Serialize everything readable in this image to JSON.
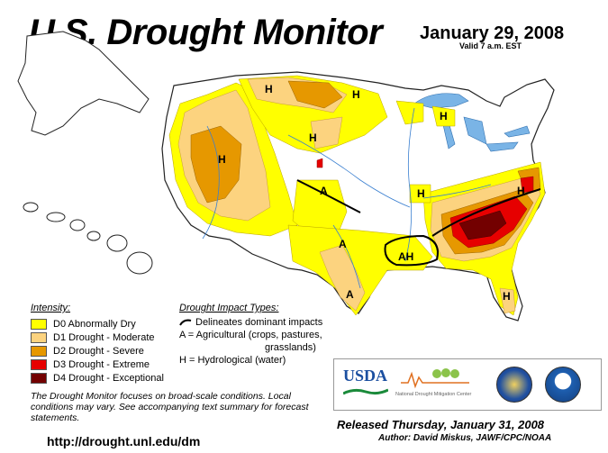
{
  "header": {
    "title": "U.S. Drought Monitor",
    "date": "January 29, 2008",
    "valid": "Valid 7 a.m. EST"
  },
  "legend": {
    "heading": "Intensity:",
    "items": [
      {
        "label": "D0 Abnormally Dry",
        "color": "#ffff00"
      },
      {
        "label": "D1 Drought - Moderate",
        "color": "#fcd37f"
      },
      {
        "label": "D2 Drought - Severe",
        "color": "#e69800"
      },
      {
        "label": "D3 Drought - Extreme",
        "color": "#e60000"
      },
      {
        "label": "D4 Drought - Exceptional",
        "color": "#730000"
      }
    ]
  },
  "impacts": {
    "heading": "Drought Impact Types:",
    "line_text": "Delineates dominant impacts",
    "ag_line1": "A = Agricultural (crops, pastures,",
    "ag_line2": "grasslands)",
    "hydro": "H = Hydrological (water)"
  },
  "map_labels": [
    "H",
    "H",
    "H",
    "H",
    "H",
    "A",
    "H",
    "H",
    "A",
    "AH",
    "A",
    "H"
  ],
  "note": "The Drought Monitor focuses on broad-scale conditions. Local conditions may vary. See accompanying text summary for forecast statements.",
  "url": "http://drought.unl.edu/dm",
  "logos": {
    "usda": "USDA",
    "ndmc": "National Drought Mitigation Center"
  },
  "released": "Released Thursday, January 31, 2008",
  "author": "Author: David Miskus, JAWF/CPC/NOAA"
}
